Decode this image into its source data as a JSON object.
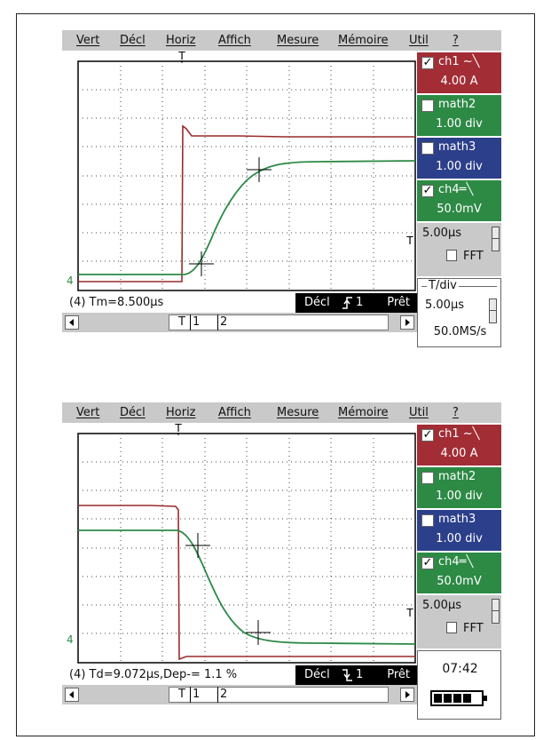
{
  "menu": [
    "Vert",
    "Décl",
    "Horiz",
    "Affich",
    "Mesure",
    "Mémoire",
    "Util",
    "?"
  ],
  "screens": [
    {
      "channels": [
        {
          "name": "ch1 ~╲",
          "value": "4.00 A",
          "checked": true,
          "color": "#a22d35"
        },
        {
          "name": "math2",
          "value": "1.00 div",
          "checked": false,
          "color": "#2d8a45"
        },
        {
          "name": "math3",
          "value": "1.00 div",
          "checked": false,
          "color": "#2c3f8a"
        },
        {
          "name": "ch4═╲",
          "value": "50.0mV",
          "checked": true,
          "color": "#2d8a45"
        }
      ],
      "timebase": "5.00µs",
      "fft_label": "FFT",
      "tdiv": {
        "legend": "T/div",
        "value": "5.00µs",
        "rate": "50.0MS/s"
      },
      "measurement": "(4) Tm=8.500µs",
      "trigger": {
        "label": "Décl",
        "state": "Prêt",
        "edge": "rising"
      },
      "markers": {
        "t": "T",
        "m1": "1",
        "m2": "2"
      },
      "trigger_marker": "T",
      "ground_marker": "4"
    },
    {
      "channels": [
        {
          "name": "ch1 ~╲",
          "value": "4.00 A",
          "checked": true,
          "color": "#a22d35"
        },
        {
          "name": "math2",
          "value": "1.00 div",
          "checked": false,
          "color": "#2d8a45"
        },
        {
          "name": "math3",
          "value": "1.00 div",
          "checked": false,
          "color": "#2c3f8a"
        },
        {
          "name": "ch4═╲",
          "value": "50.0mV",
          "checked": true,
          "color": "#2d8a45"
        }
      ],
      "timebase": "5.00µs",
      "fft_label": "FFT",
      "clock": "07:42",
      "battery_bars": 4,
      "measurement": "(4) Td=9.072µs,Dep-=  1.1 %",
      "trigger": {
        "label": "Décl",
        "state": "Prêt",
        "edge": "falling"
      },
      "markers": {
        "t": "T",
        "m1": "1",
        "m2": "2"
      },
      "trigger_marker": "T",
      "ground_marker": "4"
    }
  ]
}
